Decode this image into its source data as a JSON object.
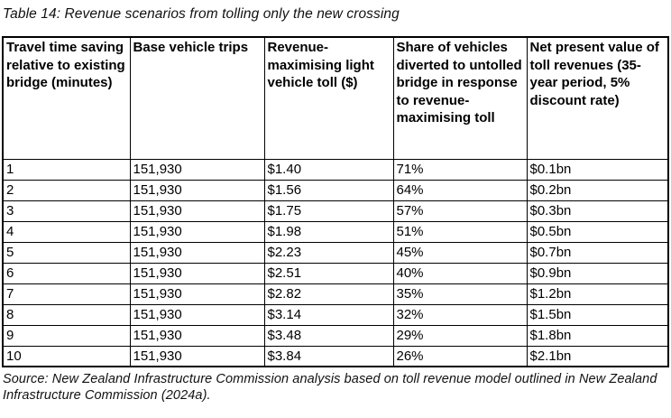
{
  "page": {
    "title": "Table 14: Revenue scenarios from tolling only the new crossing",
    "source_line1": "Source: New Zealand Infrastructure Commission analysis based on toll revenue model outlined in New Zealand",
    "source_line2": "Infrastructure Commission (2024a)."
  },
  "chart_data": {
    "type": "table",
    "columns": [
      "Travel time saving relative to existing bridge (minutes)",
      "Base vehicle trips",
      "Revenue-maximising light vehicle toll ($)",
      "Share of vehicles diverted to untolled bridge in response to revenue-maximising toll",
      "Net present value of toll revenues (35-year period, 5% discount rate)"
    ],
    "rows": [
      [
        "1",
        "151,930",
        "$1.40",
        "71%",
        "$0.1bn"
      ],
      [
        "2",
        "151,930",
        "$1.56",
        "64%",
        "$0.2bn"
      ],
      [
        "3",
        "151,930",
        "$1.75",
        "57%",
        "$0.3bn"
      ],
      [
        "4",
        "151,930",
        "$1.98",
        "51%",
        "$0.5bn"
      ],
      [
        "5",
        "151,930",
        "$2.23",
        "45%",
        "$0.7bn"
      ],
      [
        "6",
        "151,930",
        "$2.51",
        "40%",
        "$0.9bn"
      ],
      [
        "7",
        "151,930",
        "$2.82",
        "35%",
        "$1.2bn"
      ],
      [
        "8",
        "151,930",
        "$3.14",
        "32%",
        "$1.5bn"
      ],
      [
        "9",
        "151,930",
        "$3.48",
        "29%",
        "$1.8bn"
      ],
      [
        "10",
        "151,930",
        "$3.84",
        "26%",
        "$2.1bn"
      ]
    ]
  }
}
